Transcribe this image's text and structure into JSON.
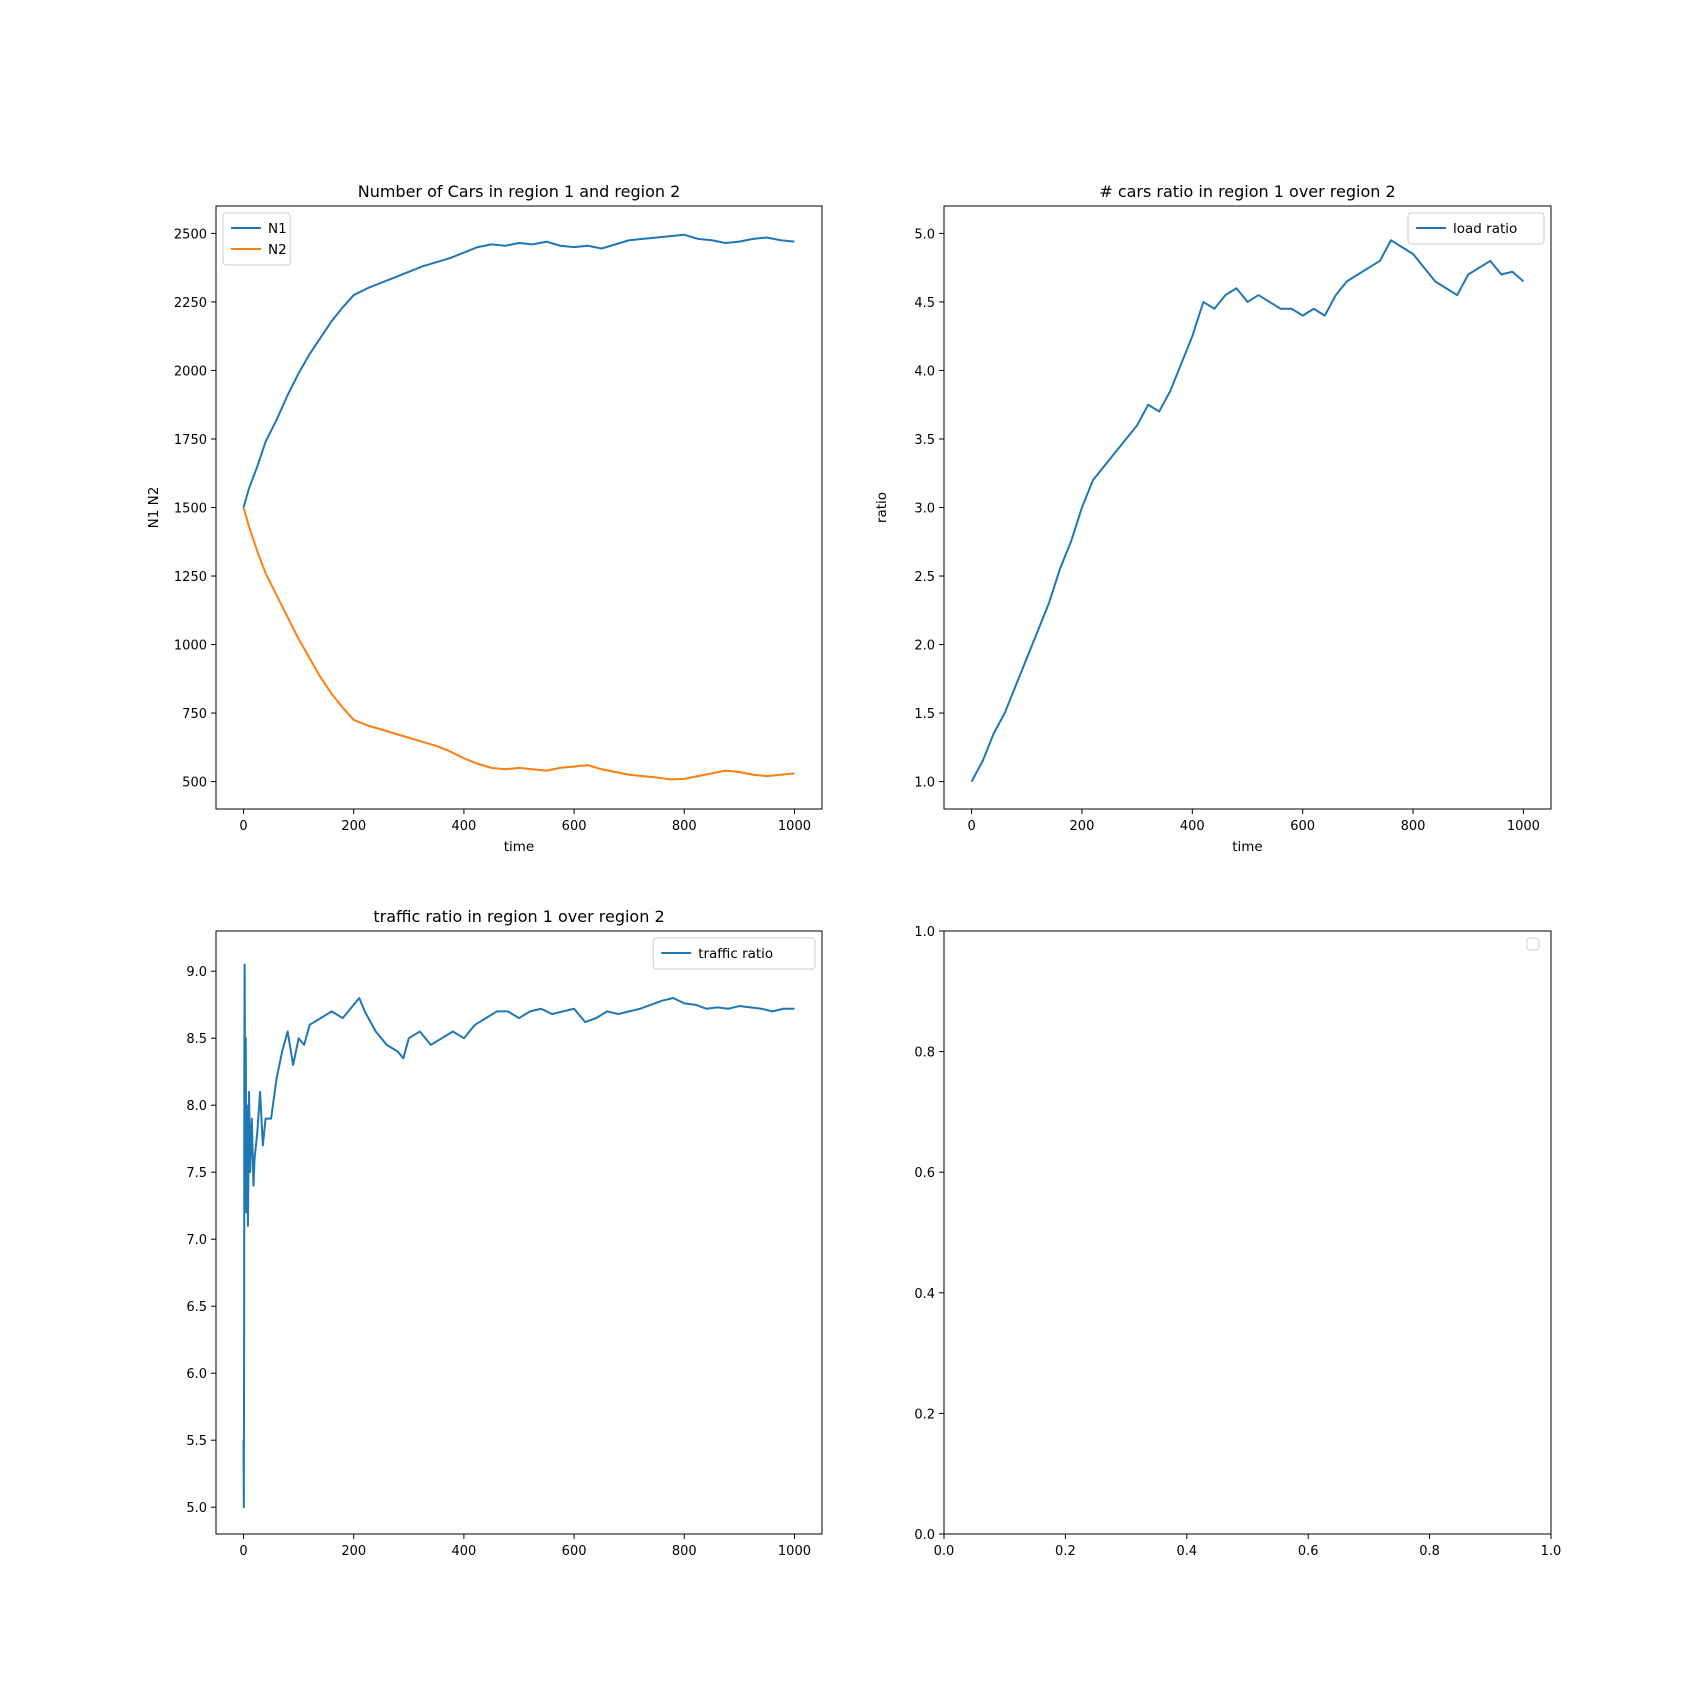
{
  "chart_data": [
    {
      "type": "line",
      "title": "Number of Cars in region 1 and region 2",
      "xlabel": "time",
      "ylabel": "N1 N2",
      "xlim": [
        -50,
        1050
      ],
      "ylim": [
        400,
        2600
      ],
      "xticks": [
        0,
        200,
        400,
        600,
        800,
        1000
      ],
      "yticks": [
        500,
        750,
        1000,
        1250,
        1500,
        1750,
        2000,
        2250,
        2500
      ],
      "legend_position": "upper-left",
      "series": [
        {
          "name": "N1",
          "color": "#1f77b4",
          "x": [
            0,
            10,
            25,
            40,
            60,
            80,
            100,
            120,
            140,
            160,
            180,
            200,
            225,
            250,
            275,
            300,
            325,
            350,
            375,
            400,
            425,
            450,
            475,
            500,
            525,
            550,
            575,
            600,
            625,
            650,
            675,
            700,
            725,
            750,
            775,
            800,
            825,
            850,
            875,
            900,
            925,
            950,
            975,
            1000
          ],
          "y": [
            1500,
            1570,
            1650,
            1740,
            1820,
            1910,
            1990,
            2060,
            2120,
            2180,
            2230,
            2275,
            2300,
            2320,
            2340,
            2360,
            2380,
            2395,
            2410,
            2430,
            2450,
            2460,
            2455,
            2465,
            2460,
            2470,
            2455,
            2450,
            2455,
            2445,
            2460,
            2475,
            2480,
            2485,
            2490,
            2495,
            2480,
            2475,
            2465,
            2470,
            2480,
            2485,
            2475,
            2470
          ]
        },
        {
          "name": "N2",
          "color": "#ff7f0e",
          "x": [
            0,
            10,
            25,
            40,
            60,
            80,
            100,
            120,
            140,
            160,
            180,
            200,
            225,
            250,
            275,
            300,
            325,
            350,
            375,
            400,
            425,
            450,
            475,
            500,
            525,
            550,
            575,
            600,
            625,
            650,
            675,
            700,
            725,
            750,
            775,
            800,
            825,
            850,
            875,
            900,
            925,
            950,
            975,
            1000
          ],
          "y": [
            1500,
            1430,
            1340,
            1260,
            1180,
            1100,
            1020,
            950,
            880,
            820,
            770,
            725,
            705,
            690,
            675,
            660,
            645,
            630,
            610,
            585,
            565,
            550,
            545,
            550,
            545,
            540,
            550,
            555,
            560,
            545,
            535,
            525,
            520,
            515,
            508,
            510,
            520,
            530,
            540,
            535,
            525,
            520,
            525,
            530
          ]
        }
      ]
    },
    {
      "type": "line",
      "title": "# cars ratio in region 1 over region 2",
      "xlabel": "time",
      "ylabel": "ratio",
      "xlim": [
        -50,
        1050
      ],
      "ylim": [
        0.8,
        5.2
      ],
      "xticks": [
        0,
        200,
        400,
        600,
        800,
        1000
      ],
      "yticks": [
        1.0,
        1.5,
        2.0,
        2.5,
        3.0,
        3.5,
        4.0,
        4.5,
        5.0
      ],
      "legend_position": "upper-right",
      "series": [
        {
          "name": "load ratio",
          "color": "#1f77b4",
          "x": [
            0,
            20,
            40,
            60,
            80,
            100,
            120,
            140,
            160,
            180,
            200,
            220,
            240,
            260,
            280,
            300,
            320,
            340,
            360,
            380,
            400,
            420,
            440,
            460,
            480,
            500,
            520,
            540,
            560,
            580,
            600,
            620,
            640,
            660,
            680,
            700,
            720,
            740,
            760,
            780,
            800,
            820,
            840,
            860,
            880,
            900,
            920,
            940,
            960,
            980,
            1000
          ],
          "y": [
            1.0,
            1.15,
            1.35,
            1.5,
            1.7,
            1.9,
            2.1,
            2.3,
            2.55,
            2.75,
            3.0,
            3.2,
            3.3,
            3.4,
            3.5,
            3.6,
            3.75,
            3.7,
            3.85,
            4.05,
            4.25,
            4.5,
            4.45,
            4.55,
            4.6,
            4.5,
            4.55,
            4.5,
            4.45,
            4.45,
            4.4,
            4.45,
            4.4,
            4.55,
            4.65,
            4.7,
            4.75,
            4.8,
            4.95,
            4.9,
            4.85,
            4.75,
            4.65,
            4.6,
            4.55,
            4.7,
            4.75,
            4.8,
            4.7,
            4.72,
            4.65
          ]
        }
      ]
    },
    {
      "type": "line",
      "title": "traffic ratio in region 1 over region 2",
      "xlabel": "",
      "ylabel": "",
      "xlim": [
        -50,
        1050
      ],
      "ylim": [
        4.8,
        9.3
      ],
      "xticks": [
        0,
        200,
        400,
        600,
        800,
        1000
      ],
      "yticks": [
        5.0,
        5.5,
        6.0,
        6.5,
        7.0,
        7.5,
        8.0,
        8.5,
        9.0
      ],
      "legend_position": "upper-right",
      "series": [
        {
          "name": "traffic ratio",
          "color": "#1f77b4",
          "x": [
            0,
            0.5,
            1,
            1.5,
            2,
            3,
            4,
            5,
            6,
            8,
            10,
            12,
            15,
            18,
            20,
            25,
            30,
            35,
            40,
            50,
            60,
            70,
            80,
            90,
            100,
            110,
            120,
            140,
            160,
            180,
            200,
            210,
            220,
            240,
            260,
            280,
            290,
            300,
            320,
            340,
            360,
            380,
            400,
            420,
            440,
            460,
            480,
            500,
            520,
            540,
            560,
            580,
            600,
            620,
            640,
            660,
            680,
            700,
            720,
            740,
            760,
            780,
            800,
            820,
            840,
            860,
            880,
            900,
            920,
            940,
            960,
            980,
            1000
          ],
          "y": [
            5.5,
            5.0,
            6.2,
            8.4,
            9.05,
            7.8,
            8.5,
            7.2,
            8.0,
            7.1,
            8.1,
            7.5,
            7.9,
            7.4,
            7.6,
            7.8,
            8.1,
            7.7,
            7.9,
            7.9,
            8.2,
            8.4,
            8.55,
            8.3,
            8.5,
            8.45,
            8.6,
            8.65,
            8.7,
            8.65,
            8.75,
            8.8,
            8.7,
            8.55,
            8.45,
            8.4,
            8.35,
            8.5,
            8.55,
            8.45,
            8.5,
            8.55,
            8.5,
            8.6,
            8.65,
            8.7,
            8.7,
            8.65,
            8.7,
            8.72,
            8.68,
            8.7,
            8.72,
            8.62,
            8.65,
            8.7,
            8.68,
            8.7,
            8.72,
            8.75,
            8.78,
            8.8,
            8.76,
            8.75,
            8.72,
            8.73,
            8.72,
            8.74,
            8.73,
            8.72,
            8.7,
            8.72,
            8.72
          ]
        }
      ]
    },
    {
      "type": "line",
      "title": "",
      "xlabel": "",
      "ylabel": "",
      "xlim": [
        0.0,
        1.0
      ],
      "ylim": [
        0.0,
        1.0
      ],
      "xticks": [
        0.0,
        0.2,
        0.4,
        0.6,
        0.8,
        1.0
      ],
      "yticks": [
        0.0,
        0.2,
        0.4,
        0.6,
        0.8,
        1.0
      ],
      "legend_position": "upper-right",
      "series": []
    }
  ]
}
